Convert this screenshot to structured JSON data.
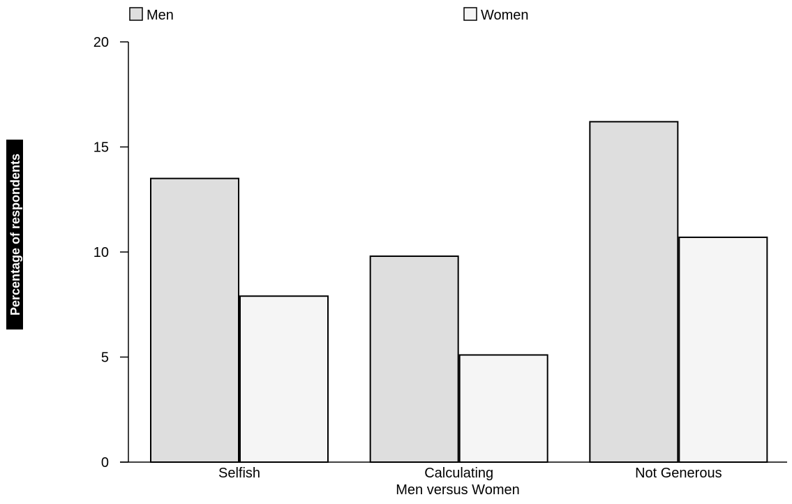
{
  "chart_data": {
    "type": "bar",
    "categories": [
      "Selfish",
      "Calculating",
      "Not Generous"
    ],
    "series": [
      {
        "name": "Men",
        "values": [
          13.5,
          9.8,
          16.2
        ],
        "color": "#dedede"
      },
      {
        "name": "Women",
        "values": [
          7.9,
          5.1,
          10.7
        ],
        "color": "#f5f5f5"
      }
    ],
    "xlabel": "Men versus Women",
    "ylabel": "Percentage of respondents",
    "ylim": [
      0,
      20
    ],
    "yticks": [
      0,
      5,
      10,
      15,
      20
    ],
    "grid": false,
    "legend_position": "top"
  }
}
